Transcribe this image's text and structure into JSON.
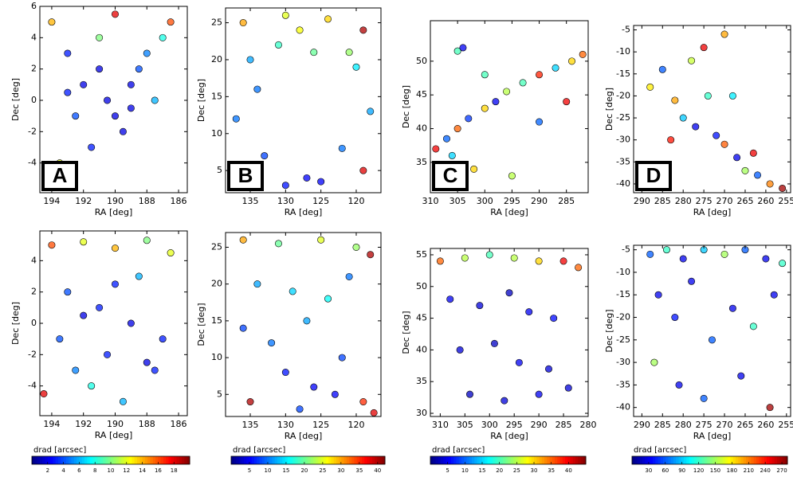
{
  "chart_data": [
    {
      "type": "scatter",
      "label": "A",
      "xlabel": "RA [deg]",
      "ylabel": "Dec [deg]",
      "xlim": [
        194.75,
        185.45
      ],
      "ylim": [
        -5.9,
        6
      ],
      "xticks": [
        194,
        192,
        190,
        188,
        186
      ],
      "yticks": [
        -4,
        -2,
        0,
        2,
        4,
        6
      ],
      "x": [
        193,
        191,
        189,
        190.5,
        192.5,
        188,
        187,
        194,
        191.5,
        189.5,
        192,
        190,
        193.5,
        188.5,
        186.5,
        191,
        190,
        193,
        189,
        187.5
      ],
      "y": [
        3,
        2,
        1,
        0,
        -1,
        3,
        4,
        5,
        -3,
        -2,
        1,
        -1,
        -4,
        2,
        5,
        4,
        5.5,
        0.5,
        -0.5,
        0
      ],
      "c": [
        3,
        2,
        2,
        2,
        4,
        5,
        8,
        14,
        3,
        2,
        2,
        2,
        12,
        4,
        16,
        10,
        18,
        3,
        2,
        6
      ]
    },
    {
      "type": "scatter",
      "label": "B",
      "xlabel": "RA [deg]",
      "ylabel": "Dec [deg]",
      "xlim": [
        138.5,
        116.5
      ],
      "ylim": [
        2,
        27
      ],
      "xticks": [
        135,
        130,
        125,
        120
      ],
      "yticks": [
        5,
        10,
        15,
        20,
        25
      ],
      "x": [
        136,
        130,
        124,
        119,
        135,
        120,
        137,
        118,
        133,
        122,
        127,
        130,
        125,
        136,
        119,
        131,
        126,
        121,
        134,
        128
      ],
      "y": [
        25,
        26,
        25.5,
        24,
        20,
        19,
        12,
        13,
        7,
        8,
        4,
        3,
        3.5,
        4,
        5,
        22,
        21,
        21,
        16,
        24
      ],
      "c": [
        30,
        25,
        28,
        40,
        12,
        15,
        10,
        12,
        8,
        10,
        5,
        6,
        5,
        35,
        38,
        18,
        20,
        22,
        10,
        26
      ]
    },
    {
      "type": "scatter",
      "label": "C",
      "xlabel": "RA [deg]",
      "ylabel": "Dec [deg]",
      "xlim": [
        310,
        281
      ],
      "ylim": [
        30.5,
        56
      ],
      "xticks": [
        310,
        305,
        300,
        295,
        290,
        285
      ],
      "yticks": [
        35,
        40,
        45,
        50
      ],
      "x": [
        309,
        307,
        305,
        303,
        300,
        298,
        296,
        293,
        290,
        287,
        284,
        282,
        305,
        304,
        302,
        306,
        295,
        290,
        300,
        285
      ],
      "y": [
        37,
        38.5,
        40,
        41.5,
        43,
        44,
        45.5,
        46.8,
        48,
        49,
        50,
        51,
        51.5,
        52,
        34,
        36,
        33,
        41,
        48,
        44
      ],
      "c": [
        40,
        10,
        35,
        8,
        30,
        5,
        25,
        20,
        38,
        15,
        30,
        35,
        20,
        5,
        30,
        15,
        25,
        10,
        20,
        40
      ]
    },
    {
      "type": "scatter",
      "label": "D",
      "xlabel": "RA [deg]",
      "ylabel": "Dec [deg]",
      "xlim": [
        292,
        254
      ],
      "ylim": [
        -42,
        -4
      ],
      "xticks": [
        290,
        285,
        280,
        275,
        270,
        265,
        260,
        255
      ],
      "yticks": [
        -40,
        -35,
        -30,
        -25,
        -20,
        -15,
        -10,
        -5
      ],
      "x": [
        288,
        285,
        282,
        280,
        277,
        275,
        272,
        270,
        267,
        265,
        262,
        259,
        256,
        283,
        278,
        274,
        268,
        263,
        286,
        270
      ],
      "y": [
        -18,
        -14,
        -21,
        -25,
        -27,
        -9,
        -29,
        -31,
        -34,
        -37,
        -38,
        -40,
        -41,
        -30,
        -12,
        -20,
        -20,
        -33,
        -36,
        -6
      ],
      "c": [
        180,
        60,
        200,
        90,
        30,
        250,
        40,
        220,
        30,
        150,
        60,
        210,
        270,
        240,
        160,
        120,
        100,
        250,
        180,
        200
      ]
    },
    {
      "type": "scatter",
      "xlabel": "RA [deg]",
      "ylabel": "Dec [deg]",
      "xlim": [
        194.75,
        185.45
      ],
      "ylim": [
        -5.9,
        5.9
      ],
      "xticks": [
        194,
        192,
        190,
        188,
        186
      ],
      "yticks": [
        -4,
        -2,
        0,
        2,
        4
      ],
      "x": [
        194,
        192,
        190,
        188,
        186.5,
        193,
        191,
        189,
        187,
        194.5,
        192.5,
        190.5,
        188.5,
        193.5,
        191.5,
        189.5,
        187.5,
        192,
        190,
        188
      ],
      "y": [
        5,
        5.2,
        4.8,
        5.3,
        4.5,
        2,
        1,
        0,
        -1,
        -4.5,
        -3,
        -2,
        3,
        -1,
        -4,
        -5,
        -3,
        0.5,
        2.5,
        -2.5
      ],
      "c": [
        16,
        12,
        14,
        10,
        12,
        4,
        3,
        2,
        3,
        18,
        5,
        3,
        6,
        4,
        8,
        6,
        3,
        2,
        3,
        2
      ]
    },
    {
      "type": "scatter",
      "xlabel": "RA [deg]",
      "ylabel": "Dec [deg]",
      "xlim": [
        138.5,
        116.5
      ],
      "ylim": [
        2,
        27
      ],
      "xticks": [
        135,
        130,
        125,
        120
      ],
      "yticks": [
        5,
        10,
        15,
        20,
        25
      ],
      "x": [
        136,
        131,
        125,
        120,
        118,
        134,
        129,
        124,
        121,
        136,
        132,
        127,
        122,
        130,
        126,
        119,
        135,
        128,
        123,
        117.5
      ],
      "y": [
        26,
        25.5,
        26,
        25,
        24,
        20,
        19,
        18,
        21,
        14,
        12,
        15,
        10,
        8,
        6,
        4,
        4,
        3,
        5,
        2.5
      ],
      "c": [
        30,
        20,
        25,
        22,
        40,
        12,
        14,
        16,
        10,
        8,
        10,
        12,
        8,
        6,
        5,
        35,
        40,
        8,
        5,
        38
      ]
    },
    {
      "type": "scatter",
      "xlabel": "RA [deg]",
      "ylabel": "Dec [deg]",
      "xlim": [
        312,
        280
      ],
      "ylim": [
        29.5,
        56
      ],
      "xticks": [
        310,
        305,
        300,
        295,
        290,
        285,
        280
      ],
      "yticks": [
        30,
        35,
        40,
        45,
        50,
        55
      ],
      "x": [
        310,
        305,
        300,
        295,
        290,
        285,
        282,
        308,
        302,
        296,
        292,
        287,
        306,
        299,
        294,
        288,
        304,
        297,
        290,
        284
      ],
      "y": [
        54,
        54.5,
        55,
        54.5,
        54,
        54,
        53,
        48,
        47,
        49,
        46,
        45,
        40,
        41,
        38,
        37,
        33,
        32,
        33,
        34
      ],
      "c": [
        35,
        25,
        20,
        25,
        30,
        40,
        35,
        5,
        4,
        3,
        5,
        6,
        4,
        3,
        5,
        4,
        3,
        4,
        5,
        4
      ]
    },
    {
      "type": "scatter",
      "xlabel": "RA [deg]",
      "ylabel": "Dec [deg]",
      "xlim": [
        292,
        254
      ],
      "ylim": [
        -42,
        -4
      ],
      "xticks": [
        290,
        285,
        280,
        275,
        270,
        265,
        260,
        255
      ],
      "yticks": [
        -40,
        -35,
        -30,
        -25,
        -20,
        -15,
        -10,
        -5
      ],
      "x": [
        288,
        284,
        280,
        275,
        270,
        265,
        260,
        256,
        286,
        282,
        278,
        273,
        268,
        263,
        258,
        287,
        281,
        275,
        266,
        259
      ],
      "y": [
        -6,
        -5,
        -7,
        -5,
        -6,
        -5,
        -7,
        -8,
        -15,
        -20,
        -12,
        -25,
        -18,
        -22,
        -15,
        -30,
        -35,
        -38,
        -33,
        -40
      ],
      "c": [
        60,
        120,
        30,
        90,
        150,
        60,
        30,
        120,
        30,
        40,
        30,
        60,
        30,
        120,
        30,
        150,
        30,
        60,
        30,
        270
      ]
    }
  ],
  "colormap": "jet",
  "colorbars": [
    {
      "label": "drad [arcsec]",
      "lim": [
        0,
        20
      ],
      "ticks": [
        2,
        4,
        6,
        8,
        10,
        12,
        14,
        16,
        18
      ]
    },
    {
      "label": "drad [arcsec]",
      "lim": [
        0,
        42
      ],
      "ticks": [
        5,
        10,
        15,
        20,
        25,
        30,
        35,
        40
      ]
    },
    {
      "label": "drad [arcsec]",
      "lim": [
        0,
        45
      ],
      "ticks": [
        5,
        10,
        15,
        20,
        25,
        30,
        35,
        40
      ]
    },
    {
      "label": "drad [arcsec]",
      "lim": [
        0,
        280
      ],
      "ticks": [
        30,
        60,
        90,
        120,
        150,
        180,
        210,
        240,
        270
      ]
    }
  ]
}
